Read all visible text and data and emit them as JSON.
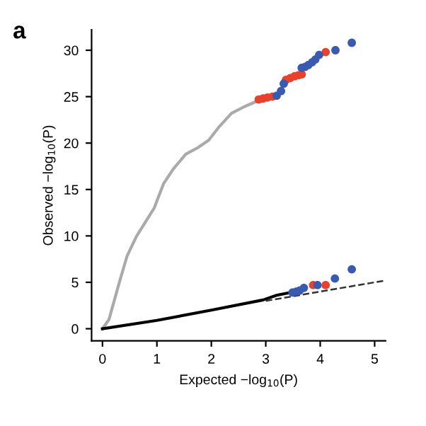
{
  "chart_data": {
    "type": "line",
    "title": "a",
    "xlabel": "Expected −log$_{10}$(P)",
    "ylabel": "Observed −log$_{10}$(P)",
    "xlim": [
      -0.2,
      5.2
    ],
    "ylim": [
      -1.3,
      32.2
    ],
    "xticks": [
      0,
      1,
      2,
      3,
      4,
      5
    ],
    "yticks": [
      0,
      5,
      10,
      15,
      20,
      25,
      30
    ],
    "grid": false,
    "legend": false,
    "series": [
      {
        "color": "#aaaaaa",
        "x": [
          0,
          0.12,
          0.3,
          0.45,
          0.62,
          0.8,
          0.95,
          1.12,
          1.3,
          1.53,
          1.75,
          1.95,
          2.15,
          2.37,
          2.6,
          2.87
        ],
        "values": [
          0,
          1.0,
          4.8,
          7.8,
          9.9,
          11.6,
          13.0,
          15.6,
          17.2,
          18.8,
          19.5,
          20.3,
          21.8,
          23.2,
          23.9,
          24.6
        ]
      },
      {
        "color": "#000000",
        "x": [
          0,
          1,
          2,
          2.95,
          3.2,
          3.45
        ],
        "values": [
          0,
          0.9,
          2.0,
          3.1,
          3.6,
          3.9
        ]
      },
      {
        "color": "#333333",
        "line_style": "dashed",
        "x": [
          3,
          5.2
        ],
        "values": [
          3,
          5.2
        ]
      },
      {
        "type": "scatter",
        "color": "#e8412c",
        "x": [
          2.87,
          2.95,
          3.03,
          3.12,
          3.37,
          3.45,
          3.53,
          3.6,
          3.66,
          4.1,
          3.87,
          4.1
        ],
        "values": [
          24.7,
          24.8,
          24.9,
          25.0,
          26.8,
          27.0,
          27.2,
          27.3,
          27.4,
          29.8,
          4.7,
          4.7
        ]
      },
      {
        "type": "scatter",
        "color": "#3a5ab0",
        "x": [
          3.2,
          3.28,
          3.33,
          3.66,
          3.72,
          3.78,
          3.85,
          3.91,
          3.98,
          4.28,
          4.58,
          3.49,
          3.56,
          3.62,
          3.7,
          3.95,
          4.27,
          4.58
        ],
        "values": [
          25.1,
          25.6,
          26.4,
          28.1,
          28.2,
          28.4,
          28.7,
          29.0,
          29.5,
          30.0,
          30.8,
          3.9,
          4.0,
          4.1,
          4.4,
          4.7,
          5.4,
          6.4
        ]
      }
    ]
  }
}
